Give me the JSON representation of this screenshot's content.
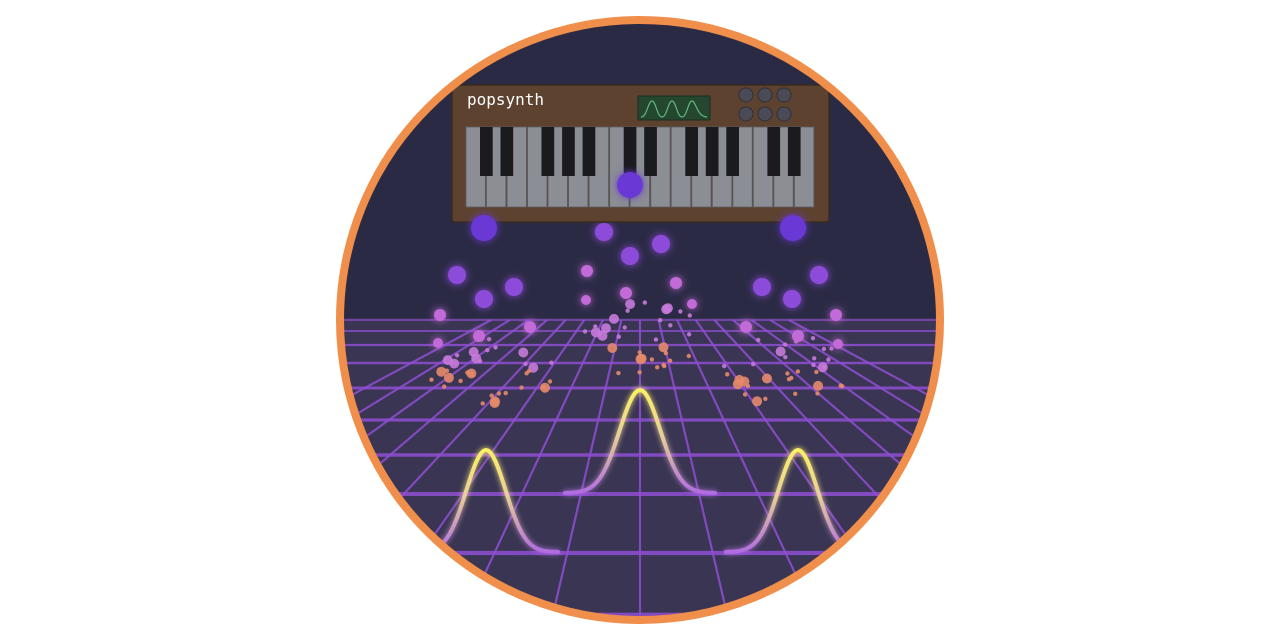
{
  "synth": {
    "brand": "popsynth",
    "knob_count": 6,
    "white_key_count": 17
  },
  "colors": {
    "ring": "#ef8f4b",
    "background": "#2b2a45",
    "floor": "#393552",
    "grid": "#8f4ed2",
    "synth_body": "#5d4230",
    "white_key": "#8b8e94",
    "black_key": "#1b1b1f",
    "knob": "#4a4b57",
    "screen": "#25472f",
    "screen_wave": "#5fb77e",
    "note_orb": "#6b38d4",
    "particle": "#b565dd",
    "wave_peak": "#fbef67",
    "wave_base": "#b06ce0"
  },
  "icons": [
    "synthesizer-icon",
    "waveform-screen-icon",
    "knob-icon",
    "note-orb-icon",
    "sound-wave-icon",
    "perspective-grid-icon"
  ]
}
